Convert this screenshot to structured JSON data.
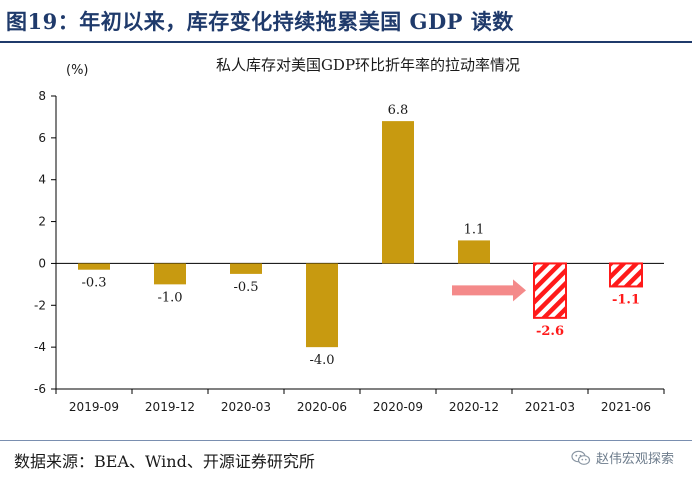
{
  "figure": {
    "title": "图19：年初以来，库存变化持续拖累美国 GDP 读数",
    "source": "数据来源：BEA、Wind、开源证券研究所",
    "watermark": "赵伟宏观探索",
    "watermark_icon": "wechat-icon"
  },
  "chart_data": {
    "type": "bar",
    "title": "私人库存对美国GDP环比折年率的拉动率情况",
    "ylabel": "(%)",
    "xlabel": "",
    "ylim": [
      -6,
      8
    ],
    "yticks": [
      -6,
      -4,
      -2,
      0,
      2,
      4,
      6,
      8
    ],
    "grid": false,
    "categories": [
      "2019-09",
      "2019-12",
      "2020-03",
      "2020-06",
      "2020-09",
      "2020-12",
      "2021-03",
      "2021-06"
    ],
    "values": [
      -0.3,
      -1.0,
      -0.5,
      -4.0,
      6.8,
      1.1,
      -2.6,
      -1.1
    ],
    "value_labels": [
      "-0.3",
      "-1.0",
      "-0.5",
      "-4.0",
      "6.8",
      "1.1",
      "-2.6",
      "-1.1"
    ],
    "bar_styles": [
      "actual",
      "actual",
      "actual",
      "actual",
      "actual",
      "actual",
      "forecast",
      "forecast"
    ],
    "colors": {
      "actual_bar": "#c89a10",
      "forecast_bar": "#ff1a1a",
      "forecast_label": "#ff1a1a",
      "arrow": "#f48a8a"
    },
    "annotation": {
      "type": "arrow",
      "from_category_index": 5,
      "to_category_index": 6
    }
  }
}
